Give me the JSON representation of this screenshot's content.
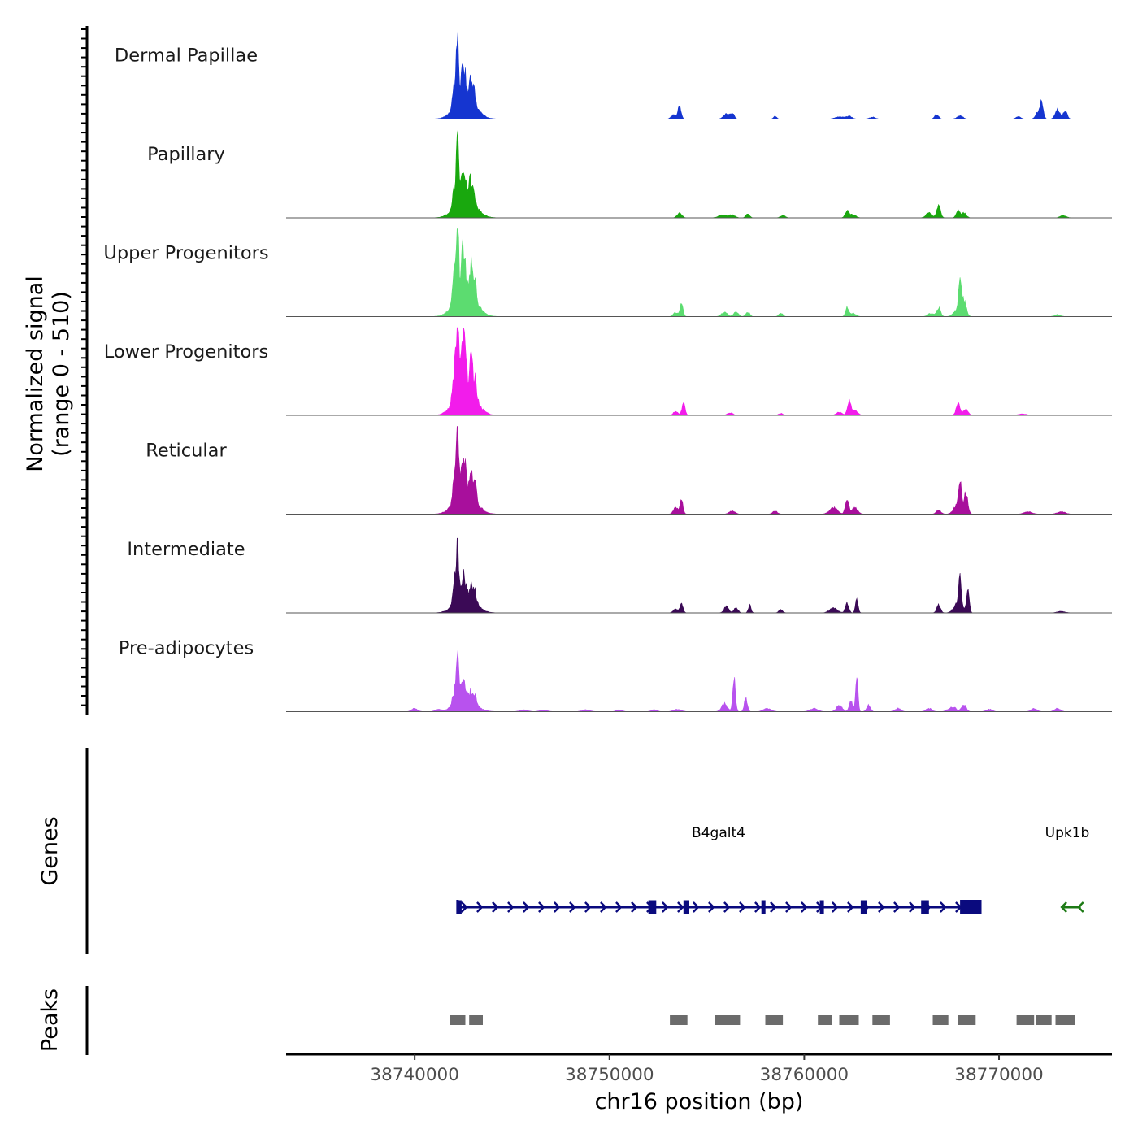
{
  "chart_data": {
    "type": "area",
    "title": "",
    "ylabel_line1": "Normalized signal",
    "ylabel_line2": "(range 0 - 510)",
    "ylim": [
      0,
      510
    ],
    "xlabel": "chr16 position (bp)",
    "xlim": [
      38733400,
      38775800
    ],
    "x_ticks": [
      38740000,
      38750000,
      38760000,
      38770000
    ],
    "x_tick_labels": [
      "38740000",
      "38750000",
      "38760000",
      "38770000"
    ],
    "genes_label": "Genes",
    "peaks_label": "Peaks",
    "tracks": [
      {
        "name": "Dermal Papillae",
        "color": "#1535d0",
        "peaks": [
          [
            38742200,
            420,
            55
          ],
          [
            38742050,
            150,
            90
          ],
          [
            38742500,
            200,
            110
          ],
          [
            38742850,
            100,
            50
          ],
          [
            38743000,
            120,
            80
          ],
          [
            38742600,
            150,
            500
          ],
          [
            38753600,
            80,
            80
          ],
          [
            38753300,
            30,
            120
          ],
          [
            38756000,
            30,
            150
          ],
          [
            38756300,
            35,
            100
          ],
          [
            38758500,
            18,
            80
          ],
          [
            38761800,
            15,
            200
          ],
          [
            38762300,
            18,
            150
          ],
          [
            38763500,
            12,
            150
          ],
          [
            38766800,
            30,
            100
          ],
          [
            38768000,
            20,
            150
          ],
          [
            38771000,
            15,
            120
          ],
          [
            38772200,
            100,
            80
          ],
          [
            38772000,
            40,
            120
          ],
          [
            38773000,
            60,
            120
          ],
          [
            38773400,
            50,
            100
          ]
        ]
      },
      {
        "name": "Papillary",
        "color": "#19a80e",
        "peaks": [
          [
            38742200,
            380,
            55
          ],
          [
            38742050,
            120,
            90
          ],
          [
            38742500,
            150,
            110
          ],
          [
            38742850,
            110,
            50
          ],
          [
            38743000,
            90,
            80
          ],
          [
            38742600,
            140,
            500
          ],
          [
            38753600,
            30,
            120
          ],
          [
            38755800,
            20,
            200
          ],
          [
            38756300,
            18,
            150
          ],
          [
            38757100,
            22,
            100
          ],
          [
            38758900,
            16,
            120
          ],
          [
            38762200,
            40,
            100
          ],
          [
            38762500,
            20,
            150
          ],
          [
            38766900,
            70,
            100
          ],
          [
            38766400,
            30,
            150
          ],
          [
            38767900,
            45,
            100
          ],
          [
            38768200,
            30,
            120
          ],
          [
            38773300,
            15,
            150
          ]
        ]
      },
      {
        "name": "Upper Progenitors",
        "color": "#5cdc70",
        "peaks": [
          [
            38742200,
            520,
            55
          ],
          [
            38742050,
            180,
            90
          ],
          [
            38742500,
            250,
            110
          ],
          [
            38742900,
            180,
            70
          ],
          [
            38743100,
            100,
            80
          ],
          [
            38742600,
            180,
            500
          ],
          [
            38753700,
            80,
            80
          ],
          [
            38753400,
            25,
            120
          ],
          [
            38755900,
            28,
            150
          ],
          [
            38756500,
            30,
            120
          ],
          [
            38757100,
            30,
            100
          ],
          [
            38758800,
            22,
            100
          ],
          [
            38762200,
            55,
            80
          ],
          [
            38762500,
            20,
            150
          ],
          [
            38766900,
            55,
            100
          ],
          [
            38766500,
            20,
            150
          ],
          [
            38768000,
            160,
            70
          ],
          [
            38768200,
            90,
            120
          ],
          [
            38767900,
            50,
            200
          ],
          [
            38773000,
            12,
            150
          ]
        ]
      },
      {
        "name": "Lower Progenitors",
        "color": "#f21ceb",
        "peaks": [
          [
            38742200,
            520,
            55
          ],
          [
            38742050,
            200,
            90
          ],
          [
            38742500,
            300,
            110
          ],
          [
            38742900,
            180,
            70
          ],
          [
            38743100,
            120,
            80
          ],
          [
            38742600,
            200,
            500
          ],
          [
            38753800,
            75,
            80
          ],
          [
            38753400,
            25,
            120
          ],
          [
            38756200,
            15,
            150
          ],
          [
            38758800,
            12,
            120
          ],
          [
            38761800,
            20,
            150
          ],
          [
            38762300,
            90,
            90
          ],
          [
            38762600,
            30,
            150
          ],
          [
            38767900,
            70,
            100
          ],
          [
            38768300,
            40,
            120
          ],
          [
            38771200,
            10,
            200
          ]
        ]
      },
      {
        "name": "Reticular",
        "color": "#a80f9c",
        "peaks": [
          [
            38742200,
            470,
            55
          ],
          [
            38742050,
            150,
            90
          ],
          [
            38742500,
            230,
            110
          ],
          [
            38742900,
            150,
            70
          ],
          [
            38743100,
            100,
            80
          ],
          [
            38742600,
            150,
            500
          ],
          [
            38753700,
            80,
            80
          ],
          [
            38753400,
            40,
            120
          ],
          [
            38756300,
            20,
            150
          ],
          [
            38758500,
            20,
            120
          ],
          [
            38761500,
            40,
            200
          ],
          [
            38762200,
            90,
            90
          ],
          [
            38762600,
            40,
            150
          ],
          [
            38766900,
            25,
            120
          ],
          [
            38768000,
            170,
            70
          ],
          [
            38768300,
            120,
            100
          ],
          [
            38767900,
            60,
            200
          ],
          [
            38771500,
            15,
            200
          ],
          [
            38773200,
            15,
            200
          ]
        ]
      },
      {
        "name": "Intermediate",
        "color": "#3b0a56",
        "peaks": [
          [
            38742200,
            360,
            55
          ],
          [
            38742050,
            150,
            90
          ],
          [
            38742500,
            130,
            110
          ],
          [
            38742900,
            90,
            70
          ],
          [
            38743100,
            70,
            80
          ],
          [
            38742600,
            110,
            500
          ],
          [
            38753700,
            55,
            80
          ],
          [
            38753400,
            25,
            120
          ],
          [
            38756000,
            40,
            120
          ],
          [
            38756500,
            35,
            100
          ],
          [
            38757200,
            50,
            70
          ],
          [
            38758800,
            20,
            100
          ],
          [
            38761500,
            30,
            200
          ],
          [
            38762200,
            60,
            90
          ],
          [
            38762700,
            80,
            70
          ],
          [
            38766900,
            50,
            100
          ],
          [
            38768000,
            170,
            70
          ],
          [
            38768400,
            150,
            70
          ],
          [
            38767900,
            70,
            200
          ],
          [
            38773200,
            10,
            200
          ]
        ]
      },
      {
        "name": "Pre-adipocytes",
        "color": "#b852ee",
        "peaks": [
          [
            38742200,
            240,
            70
          ],
          [
            38742050,
            80,
            120
          ],
          [
            38742500,
            120,
            130
          ],
          [
            38742900,
            60,
            80
          ],
          [
            38743100,
            50,
            80
          ],
          [
            38742600,
            80,
            500
          ],
          [
            38740000,
            20,
            150
          ],
          [
            38741200,
            15,
            150
          ],
          [
            38745600,
            12,
            200
          ],
          [
            38746600,
            10,
            200
          ],
          [
            38748800,
            12,
            200
          ],
          [
            38750500,
            12,
            150
          ],
          [
            38752300,
            12,
            150
          ],
          [
            38753500,
            15,
            200
          ],
          [
            38755900,
            50,
            150
          ],
          [
            38756400,
            210,
            70
          ],
          [
            38757000,
            90,
            80
          ],
          [
            38758100,
            20,
            200
          ],
          [
            38760500,
            20,
            200
          ],
          [
            38761800,
            40,
            150
          ],
          [
            38762400,
            60,
            100
          ],
          [
            38762700,
            220,
            60
          ],
          [
            38763300,
            40,
            100
          ],
          [
            38764800,
            20,
            150
          ],
          [
            38766400,
            20,
            150
          ],
          [
            38767600,
            30,
            200
          ],
          [
            38768200,
            40,
            120
          ],
          [
            38769500,
            15,
            150
          ],
          [
            38771800,
            20,
            150
          ],
          [
            38773000,
            20,
            150
          ]
        ]
      }
    ],
    "genes": [
      {
        "name": "B4galt4",
        "strand": "+",
        "start": 38742200,
        "end": 38769100,
        "color": "#0a0a7e",
        "exons": [
          [
            38742200,
            38742300
          ],
          [
            38752000,
            38752400
          ],
          [
            38753800,
            38754100
          ],
          [
            38757800,
            38758000
          ],
          [
            38760800,
            38761000
          ],
          [
            38762900,
            38763200
          ],
          [
            38766000,
            38766400
          ],
          [
            38768000,
            38769100
          ]
        ]
      },
      {
        "name": "Upk1b",
        "strand": "-",
        "start": 38773300,
        "end": 38774200,
        "color": "#1d7a15",
        "exons": []
      }
    ],
    "peaks": [
      [
        38741800,
        38742600
      ],
      [
        38742800,
        38743500
      ],
      [
        38753100,
        38754000
      ],
      [
        38755400,
        38756700
      ],
      [
        38758000,
        38758900
      ],
      [
        38760700,
        38761400
      ],
      [
        38761800,
        38762800
      ],
      [
        38763500,
        38764400
      ],
      [
        38766600,
        38767400
      ],
      [
        38767900,
        38768800
      ],
      [
        38770900,
        38771800
      ],
      [
        38771900,
        38772700
      ],
      [
        38772900,
        38773900
      ]
    ]
  }
}
